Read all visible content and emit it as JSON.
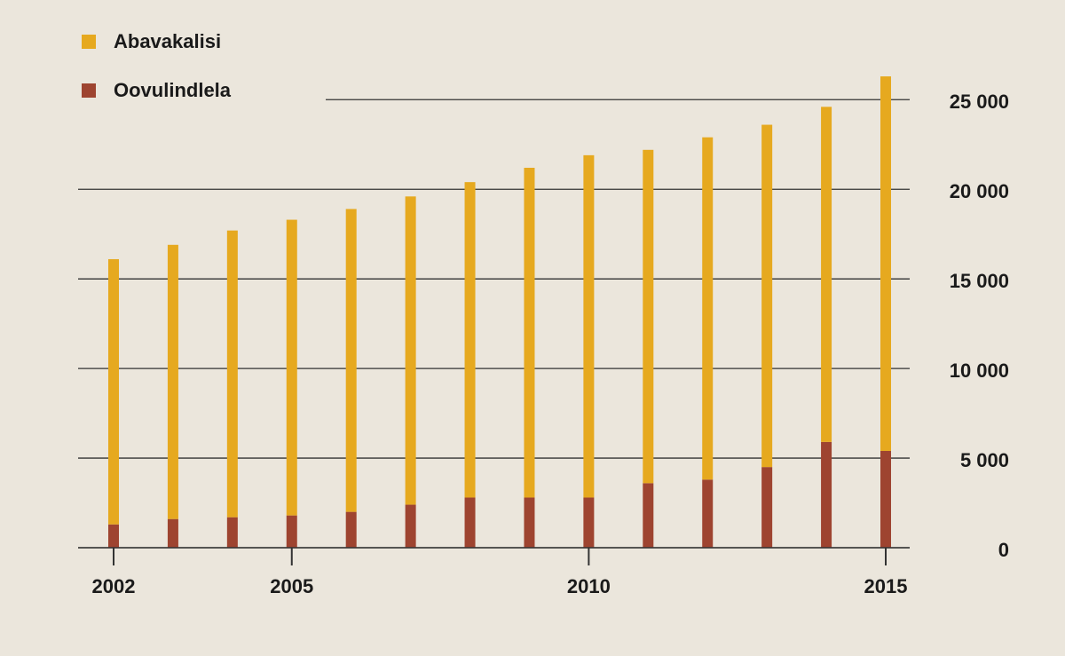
{
  "chart_data": {
    "type": "stacked-bar",
    "x": [
      2002,
      2003,
      2004,
      2005,
      2006,
      2007,
      2008,
      2009,
      2010,
      2011,
      2012,
      2013,
      2014,
      2015
    ],
    "xticks": [
      2002,
      2005,
      2010,
      2015
    ],
    "xlim": [
      2002,
      2015
    ],
    "series": [
      {
        "name": "Abavakalisi",
        "color": "#e6a91f",
        "values": [
          14800,
          15300,
          16000,
          16500,
          16900,
          17200,
          17600,
          18400,
          19100,
          18600,
          19100,
          19100,
          18700,
          20900
        ]
      },
      {
        "name": "Oovulindlela",
        "color": "#9e4430",
        "values": [
          1300,
          1600,
          1700,
          1800,
          2000,
          2400,
          2800,
          2800,
          2800,
          3600,
          3800,
          4500,
          5900,
          5400
        ]
      }
    ],
    "ylim": [
      0,
      26500
    ],
    "yticks": [
      0,
      {
        "value": 5000,
        "label": "5 000"
      },
      {
        "value": 10000,
        "label": "10 000"
      },
      {
        "value": 15000,
        "label": "15 000"
      },
      {
        "value": 20000,
        "label": "20 000"
      },
      {
        "value": 25000,
        "label": "25 000"
      }
    ],
    "grid": true,
    "legend": "top-left"
  }
}
